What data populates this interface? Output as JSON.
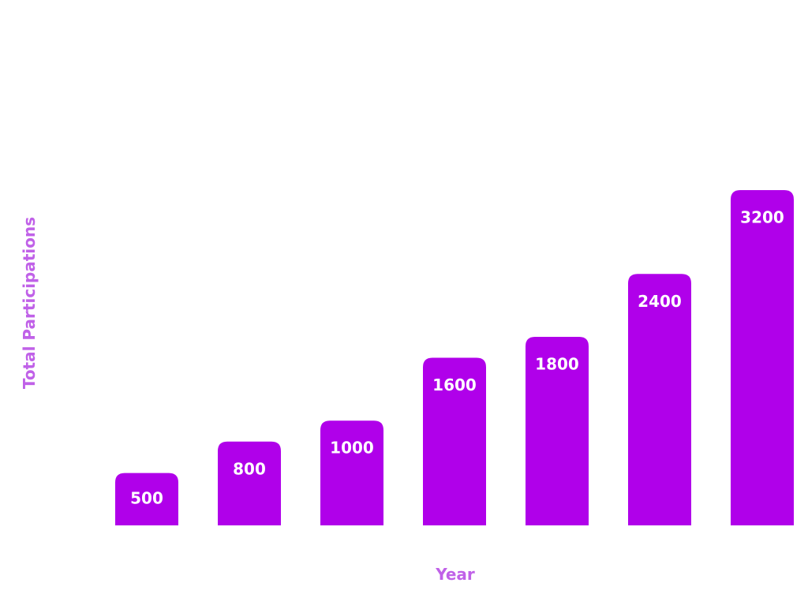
{
  "chart_data": {
    "type": "bar",
    "title": "",
    "xlabel": "Year",
    "ylabel": "Total Participations",
    "categories": [
      "",
      "",
      "",
      "",
      "",
      "",
      ""
    ],
    "values": [
      500,
      800,
      1000,
      1600,
      1800,
      2400,
      3200
    ],
    "data_labels": [
      "500",
      "800",
      "1000",
      "1600",
      "1800",
      "2400",
      "3200"
    ],
    "ylim": [
      0,
      4000
    ],
    "grid": false,
    "legend": "none",
    "bar_color": "#b000ea",
    "label_color": "#ffffff",
    "axis_title_color": "#c061e8"
  }
}
